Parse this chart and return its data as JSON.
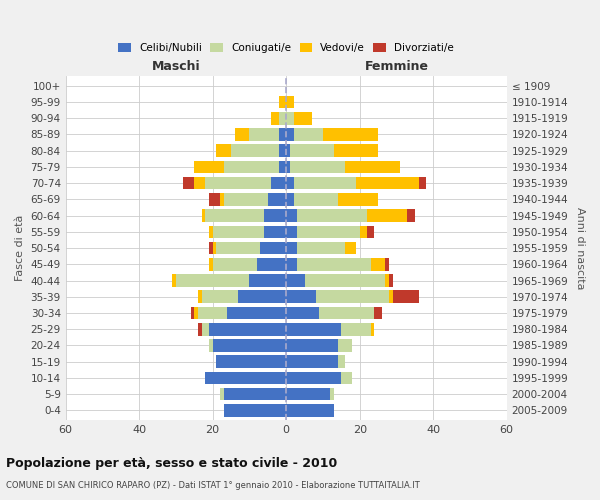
{
  "age_groups": [
    "0-4",
    "5-9",
    "10-14",
    "15-19",
    "20-24",
    "25-29",
    "30-34",
    "35-39",
    "40-44",
    "45-49",
    "50-54",
    "55-59",
    "60-64",
    "65-69",
    "70-74",
    "75-79",
    "80-84",
    "85-89",
    "90-94",
    "95-99",
    "100+"
  ],
  "birth_years": [
    "2005-2009",
    "2000-2004",
    "1995-1999",
    "1990-1994",
    "1985-1989",
    "1980-1984",
    "1975-1979",
    "1970-1974",
    "1965-1969",
    "1960-1964",
    "1955-1959",
    "1950-1954",
    "1945-1949",
    "1940-1944",
    "1935-1939",
    "1930-1934",
    "1925-1929",
    "1920-1924",
    "1915-1919",
    "1910-1914",
    "≤ 1909"
  ],
  "maschi": {
    "celibi": [
      17,
      17,
      22,
      19,
      20,
      21,
      16,
      13,
      10,
      8,
      7,
      6,
      6,
      5,
      4,
      2,
      2,
      2,
      0,
      0,
      0
    ],
    "coniugati": [
      0,
      1,
      0,
      0,
      1,
      2,
      8,
      10,
      20,
      12,
      12,
      14,
      16,
      12,
      18,
      15,
      13,
      8,
      2,
      0,
      0
    ],
    "vedovi": [
      0,
      0,
      0,
      0,
      0,
      0,
      1,
      1,
      1,
      1,
      1,
      1,
      1,
      1,
      3,
      8,
      4,
      4,
      2,
      2,
      0
    ],
    "divorziati": [
      0,
      0,
      0,
      0,
      0,
      1,
      1,
      0,
      0,
      0,
      1,
      0,
      0,
      3,
      3,
      0,
      0,
      0,
      0,
      0,
      0
    ]
  },
  "femmine": {
    "nubili": [
      13,
      12,
      15,
      14,
      14,
      15,
      9,
      8,
      5,
      3,
      3,
      3,
      3,
      2,
      2,
      1,
      1,
      2,
      0,
      0,
      0
    ],
    "coniugate": [
      0,
      1,
      3,
      2,
      4,
      8,
      15,
      20,
      22,
      20,
      13,
      17,
      19,
      12,
      17,
      15,
      12,
      8,
      2,
      0,
      0
    ],
    "vedove": [
      0,
      0,
      0,
      0,
      0,
      1,
      0,
      1,
      1,
      4,
      3,
      2,
      11,
      11,
      17,
      15,
      12,
      15,
      5,
      2,
      0
    ],
    "divorziate": [
      0,
      0,
      0,
      0,
      0,
      0,
      2,
      7,
      1,
      1,
      0,
      2,
      2,
      0,
      2,
      0,
      0,
      0,
      0,
      0,
      0
    ]
  },
  "colors": {
    "celibi_nubili": "#4472c4",
    "coniugati": "#c5d9a0",
    "vedovi": "#ffc000",
    "divorziati": "#c0392b"
  },
  "xlim": [
    -60,
    60
  ],
  "xticks": [
    -60,
    -40,
    -20,
    0,
    20,
    40,
    60
  ],
  "xticklabels": [
    "60",
    "40",
    "20",
    "0",
    "20",
    "40",
    "60"
  ],
  "title_main": "Popolazione per età, sesso e stato civile - 2010",
  "title_sub": "COMUNE DI SAN CHIRICO RAPARO (PZ) - Dati ISTAT 1° gennaio 2010 - Elaborazione TUTTAITALIA.IT",
  "xlabel_left": "Maschi",
  "xlabel_right": "Femmine",
  "ylabel_left": "Fasce di età",
  "ylabel_right": "Anni di nascita",
  "bg_color": "#f0f0f0",
  "plot_bg": "#ffffff",
  "grid_color": "#cccccc"
}
